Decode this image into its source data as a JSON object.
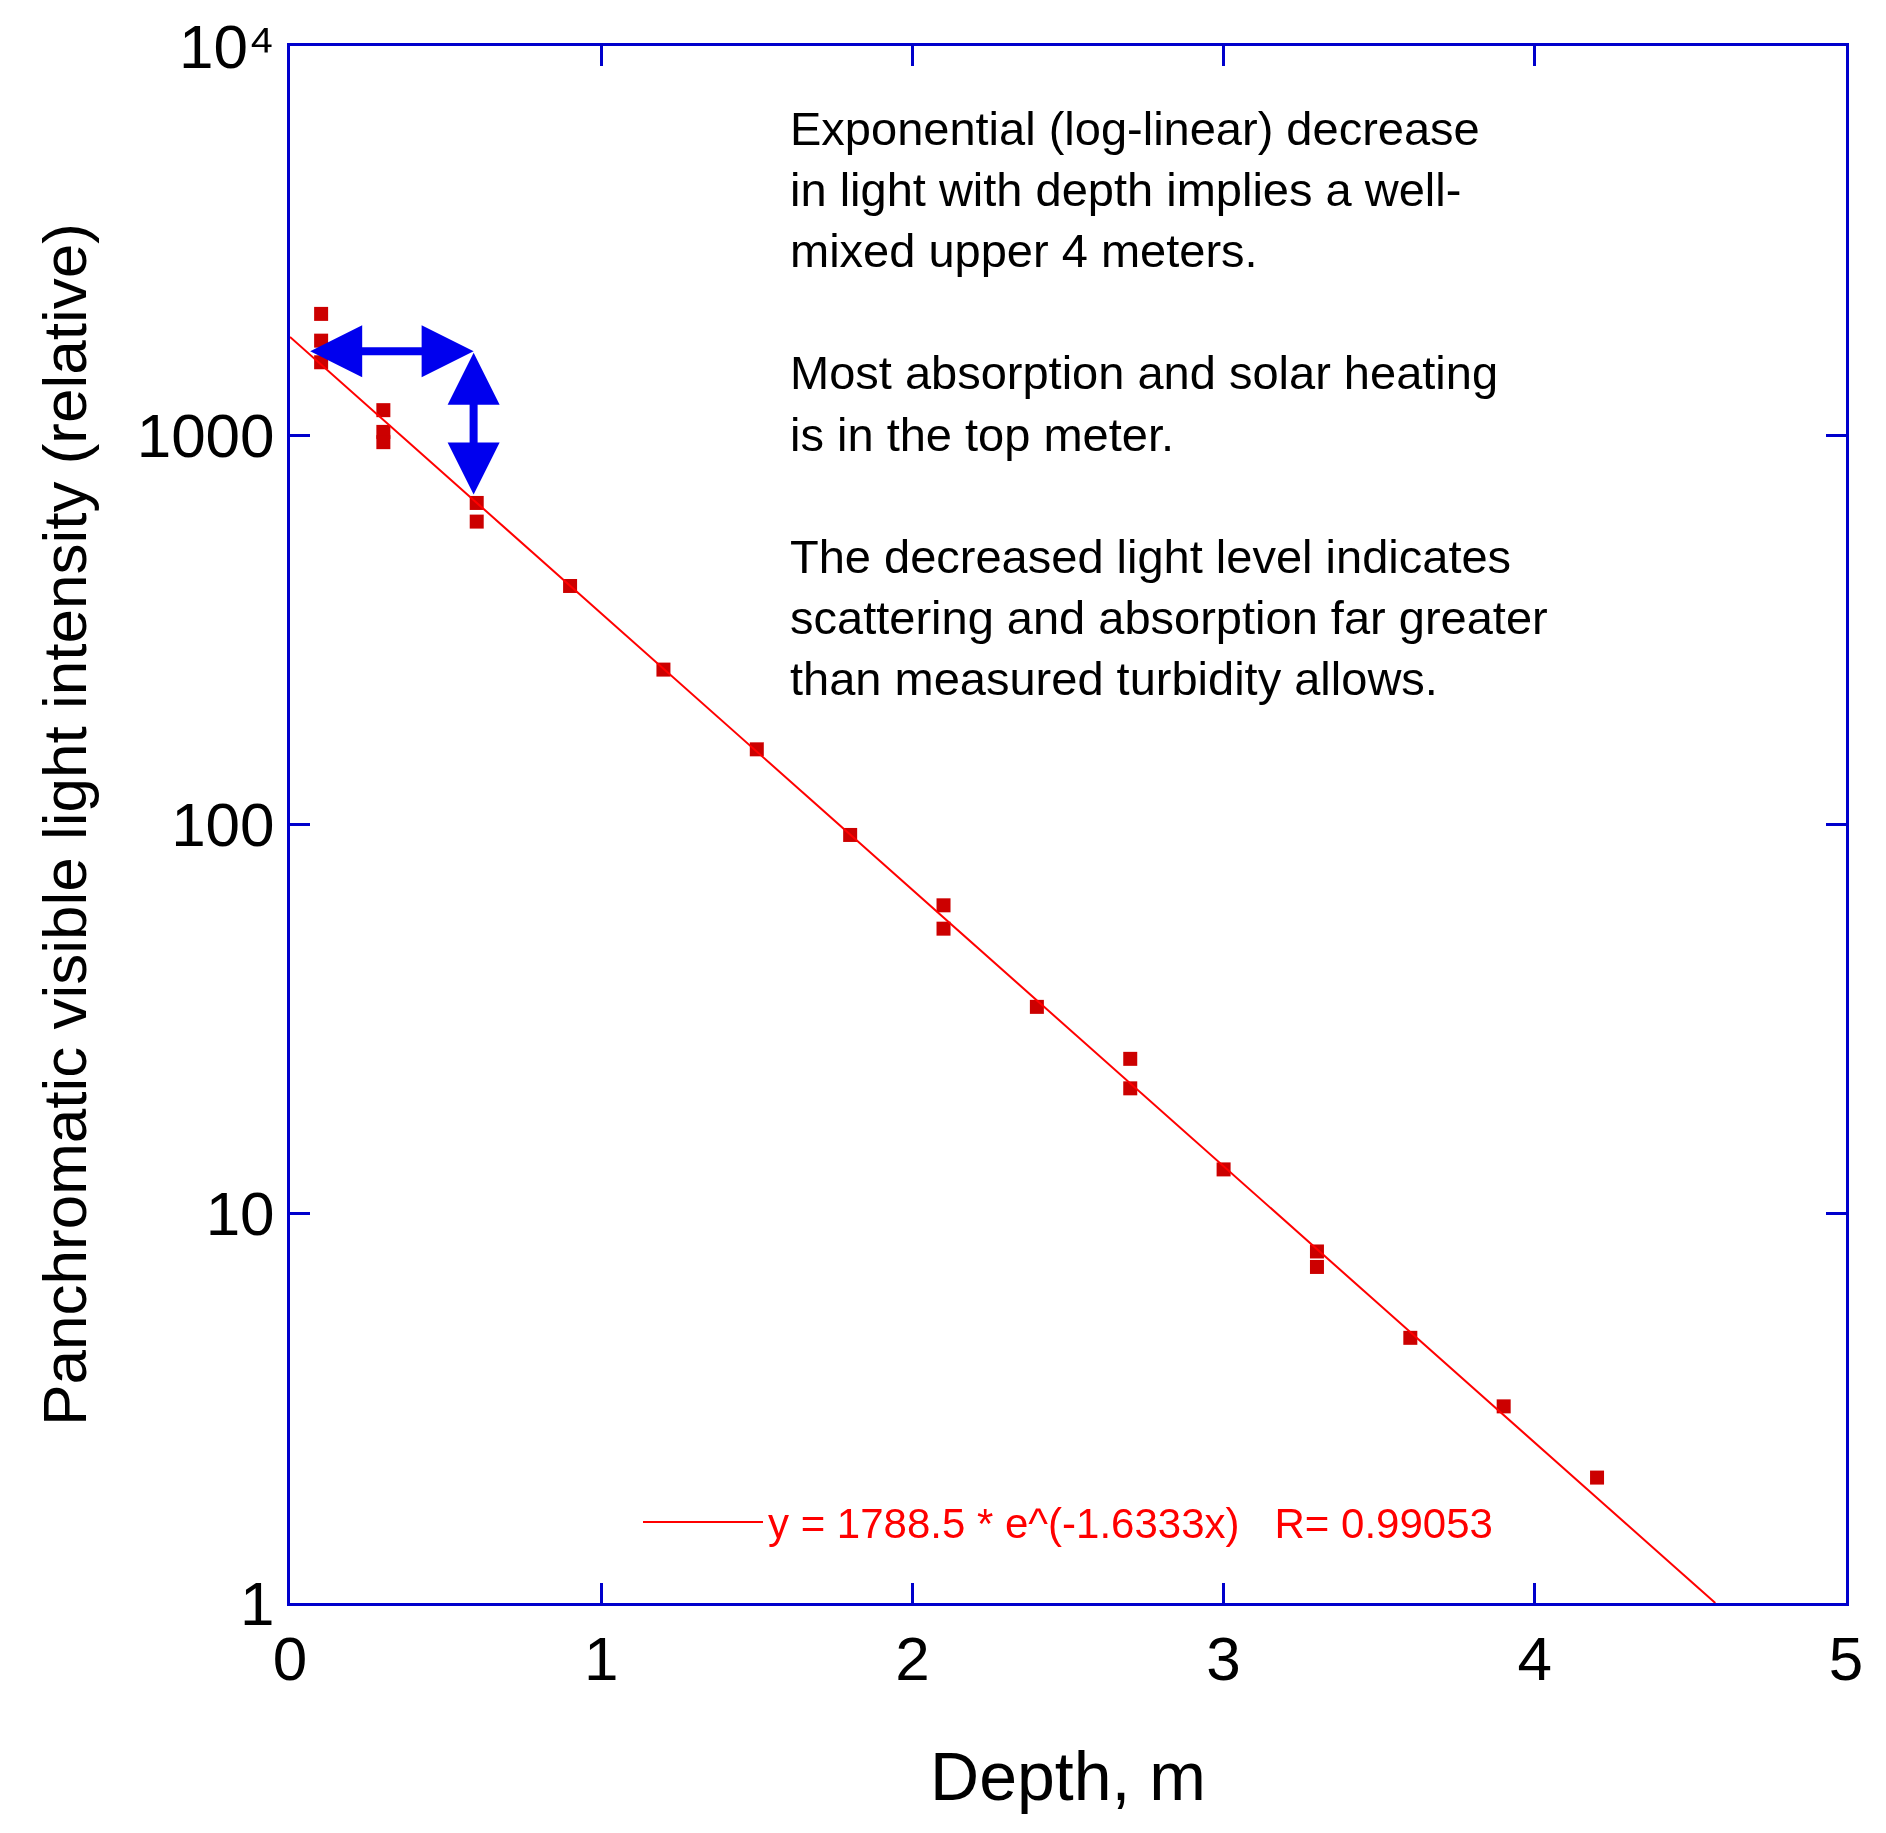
{
  "chart_data": {
    "type": "scatter",
    "xlabel": "Depth, m",
    "ylabel": "Panchromatic visible light intensity (relative)",
    "log": "y",
    "xlim": [
      0,
      5
    ],
    "xticks": [
      0,
      1,
      2,
      3,
      4,
      5
    ],
    "ylim": [
      1,
      10000
    ],
    "yticks": [
      1,
      10,
      100,
      1000,
      {
        "value": 10000,
        "label": "10⁴"
      }
    ],
    "grid": false,
    "legend": "bottom",
    "marker": "square",
    "series": [
      {
        "color": "#cc0000",
        "x": [
          0.1,
          0.1,
          0.1,
          0.3,
          0.3,
          0.3,
          0.6,
          0.6,
          0.9,
          1.2,
          1.5,
          1.8,
          2.1,
          2.1,
          2.4,
          2.7,
          2.7,
          3.0,
          3.3,
          3.3,
          3.6,
          3.9,
          4.2
        ],
        "values": [
          2050,
          1750,
          1540,
          1160,
          1020,
          960,
          670,
          600,
          410,
          250,
          156,
          94,
          62,
          54,
          34,
          25,
          21,
          13,
          8.0,
          7.3,
          4.8,
          3.2,
          2.1
        ]
      },
      {
        "type": "line",
        "name": "y = 1788.5 * e^(-1.6333x)   R= 0.99053",
        "color": "#ff0000",
        "line_style": "solid",
        "marker": "none",
        "x": [
          0,
          4.58
        ],
        "values": [
          1788.5,
          1.0
        ]
      }
    ],
    "annotations": [
      "Exponential (log-linear) decrease\nin light with depth implies a well-\nmixed upper 4 meters.\n\nMost absorption and solar heating\nis in the top meter.\n\nThe decreased light level indicates\nscattering and absorption far greater\nthan measured turbidity allows."
    ]
  }
}
